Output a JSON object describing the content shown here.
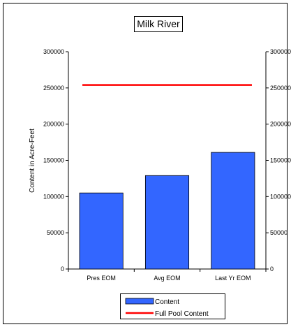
{
  "chart_data": {
    "type": "bar",
    "title": "Milk River",
    "ylabel": "Content in Acre-Feet",
    "xlabel": "",
    "categories": [
      "Pres EOM",
      "Avg EOM",
      "Last Yr EOM"
    ],
    "series": [
      {
        "name": "Content",
        "type": "bar",
        "values": [
          105000,
          129000,
          161000
        ],
        "color": "#3366FF"
      },
      {
        "name": "Full Pool Content",
        "type": "line",
        "values": [
          254000,
          254000,
          254000
        ],
        "color": "#FF0000"
      }
    ],
    "ylim": [
      0,
      300000
    ],
    "yticks": [
      0,
      50000,
      100000,
      150000,
      200000,
      250000,
      300000
    ],
    "secondary_yticks": [
      0,
      50000,
      100000,
      150000,
      200000,
      250000,
      300000
    ],
    "grid": false,
    "legend": "bottom"
  }
}
